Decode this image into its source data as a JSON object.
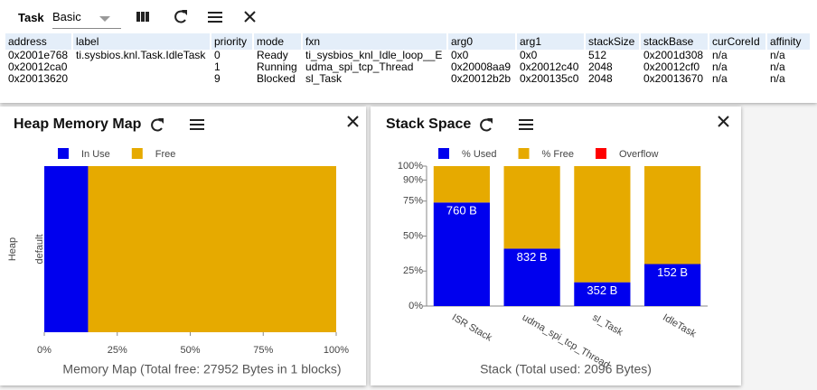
{
  "task_panel": {
    "title": "Task",
    "view": "Basic",
    "table": {
      "columns": [
        "address",
        "label",
        "priority",
        "mode",
        "fxn",
        "arg0",
        "arg1",
        "stackSize",
        "stackBase",
        "curCoreId",
        "affinity"
      ],
      "rows": [
        [
          "0x2001e768",
          "ti.sysbios.knl.Task.IdleTask",
          0,
          "Ready",
          "ti_sysbios_knl_Idle_loop__E",
          "0x0",
          "0x0",
          512,
          "0x2001d308",
          "n/a",
          "n/a"
        ],
        [
          "0x20012ca0",
          null,
          1,
          "Running",
          "udma_spi_tcp_Thread",
          "0x20008aa9",
          "0x20012c40",
          2048,
          "0x20012cf0",
          "n/a",
          "n/a"
        ],
        [
          "0x20013620",
          null,
          9,
          "Blocked",
          "sl_Task",
          "0x20012b2b",
          "0x200135c0",
          2048,
          "0x20013670",
          "n/a",
          "n/a"
        ]
      ]
    }
  },
  "chart_data": [
    {
      "type": "bar",
      "orientation": "horizontal",
      "stacked": true,
      "title": "Heap Memory Map",
      "ylabel": "Heap",
      "xlabel": "Memory Map (Total free: 27952 Bytes in 1 blocks)",
      "categories": [
        "default"
      ],
      "series": [
        {
          "name": "In Use",
          "color": "#0000ee",
          "values": [
            15
          ]
        },
        {
          "name": "Free",
          "color": "#e6aa00",
          "values": [
            85
          ]
        }
      ],
      "xlim": [
        0,
        100
      ],
      "xticks": [
        {
          "value": 0,
          "label": "0%"
        },
        {
          "value": 25,
          "label": "25%"
        },
        {
          "value": 50,
          "label": "50%"
        },
        {
          "value": 75,
          "label": "75%"
        },
        {
          "value": 100,
          "label": "100%"
        }
      ]
    },
    {
      "type": "bar",
      "orientation": "vertical",
      "stacked": true,
      "title": "Stack Space",
      "xlabel": "Stack (Total used: 2096 Bytes)",
      "categories": [
        "ISR Stack",
        "udma_spi_tcp_Thread",
        "sl_Task",
        "IdleTask"
      ],
      "series": [
        {
          "name": "% Used",
          "color": "#0000ee",
          "values": [
            74,
            41,
            17,
            30
          ]
        },
        {
          "name": "% Free",
          "color": "#e6aa00",
          "values": [
            26,
            59,
            83,
            70
          ]
        },
        {
          "name": "Overflow",
          "color": "#ff0000",
          "values": [
            0,
            0,
            0,
            0
          ]
        }
      ],
      "annotations": [
        "760 B",
        "832 B",
        "352 B",
        "152 B"
      ],
      "ylim": [
        0,
        100
      ],
      "yticks": [
        {
          "value": 0,
          "label": "0%"
        },
        {
          "value": 25,
          "label": "25%"
        },
        {
          "value": 50,
          "label": "50%"
        },
        {
          "value": 75,
          "label": "75%"
        },
        {
          "value": 90,
          "label": "90%"
        },
        {
          "value": 100,
          "label": "100%"
        }
      ]
    }
  ]
}
